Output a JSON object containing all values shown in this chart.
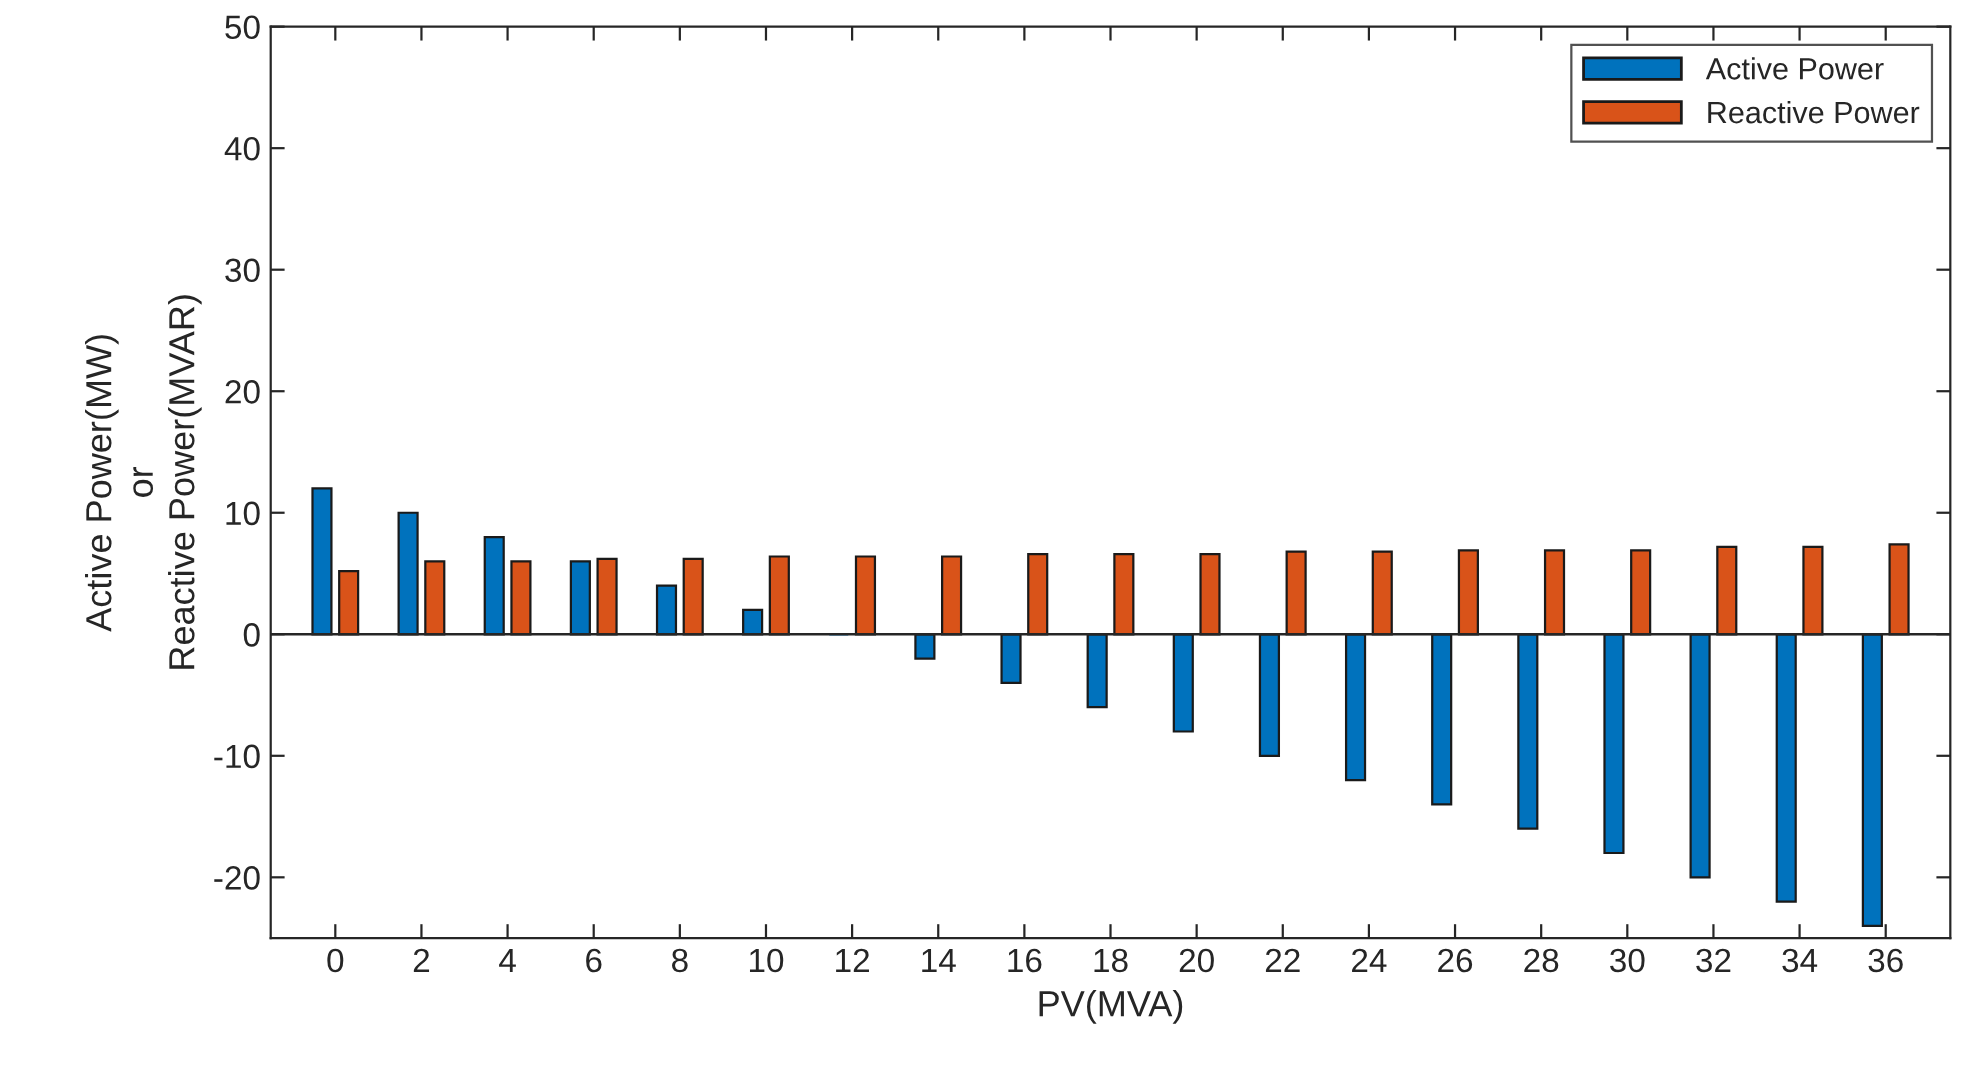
{
  "chart_data": {
    "type": "bar",
    "xlabel": "PV(MVA)",
    "ylabel": "Active Power(MW)\nor\nReactive Power(MVAR)",
    "categories": [
      "0",
      "2",
      "4",
      "6",
      "8",
      "10",
      "12",
      "14",
      "16",
      "18",
      "20",
      "22",
      "24",
      "26",
      "28",
      "30",
      "32",
      "34",
      "36"
    ],
    "series": [
      {
        "name": "Active Power",
        "color": "#0072bd",
        "values": [
          12,
          10,
          8,
          6,
          4,
          2,
          0,
          -2,
          -4,
          -6,
          -8,
          -10,
          -12,
          -14,
          -16,
          -18,
          -20,
          -22,
          -24
        ]
      },
      {
        "name": "Reactive Power",
        "color": "#d95319",
        "values": [
          5.2,
          6.0,
          6.0,
          6.2,
          6.2,
          6.4,
          6.4,
          6.4,
          6.6,
          6.6,
          6.6,
          6.8,
          6.8,
          6.9,
          6.9,
          6.9,
          7.2,
          7.2,
          7.4
        ]
      }
    ],
    "ylim": [
      -25,
      50
    ],
    "yticks": [
      -20,
      -10,
      0,
      10,
      20,
      30,
      40,
      50
    ],
    "ref_lines": [
      {
        "axis": "y",
        "value": 0,
        "color": "#262626"
      }
    ],
    "grid": false,
    "legend": "top right"
  }
}
